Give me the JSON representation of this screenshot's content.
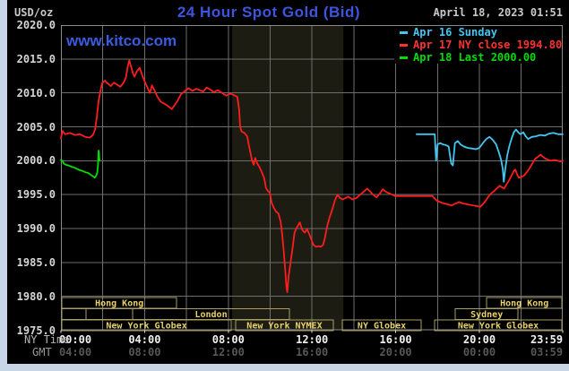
{
  "header": {
    "unit_label": "USD/oz",
    "title": "24 Hour Spot Gold (Bid)",
    "datetime": "April 18, 2023 01:51",
    "watermark": "www.kitco.com"
  },
  "legend": {
    "items": [
      {
        "label": "Apr 16 Sunday",
        "color": "#41c6f1"
      },
      {
        "label": "Apr 17 NY close 1994.80",
        "color": "#ff3232"
      },
      {
        "label": "Apr 18 Last 2000.00",
        "color": "#00dd00"
      }
    ]
  },
  "axes": {
    "x_ny_label": "NY Time",
    "x_gmt_label": "GMT",
    "y_ticks": [
      2020.0,
      2015.0,
      2010.0,
      2005.0,
      2000.0,
      1995.0,
      1990.0,
      1985.0,
      1980.0,
      1975.0
    ],
    "x_major": [
      {
        "minutes": 0,
        "ny": "00:00",
        "gmt": "04:00"
      },
      {
        "minutes": 240,
        "ny": "04:00",
        "gmt": "08:00"
      },
      {
        "minutes": 480,
        "ny": "08:00",
        "gmt": "12:00"
      },
      {
        "minutes": 720,
        "ny": "12:00",
        "gmt": "16:00"
      },
      {
        "minutes": 960,
        "ny": "16:00",
        "gmt": "20:00"
      },
      {
        "minutes": 1200,
        "ny": "20:00",
        "gmt": "00:00"
      },
      {
        "minutes": 1439,
        "ny": "23:59",
        "gmt": "03:59"
      }
    ]
  },
  "palette": {
    "background": "#000000",
    "frame": "#c7d5e7",
    "grid": "#6e6e6e",
    "plot_border": "#8a8a8a",
    "nymex_band": "#1c1c13",
    "session_border": "#a89e63",
    "session_text": "#e9d26b",
    "title_blue": "#3d55de",
    "red": "#ff1d1d",
    "green": "#00dd00",
    "cyan": "#41c6f1"
  },
  "chart_data": {
    "type": "line",
    "title": "24 Hour Spot Gold (Bid)",
    "ylabel": "USD/oz",
    "ylim": [
      1975,
      2020
    ],
    "y_gridline_step": 5,
    "x_minutes_range": [
      0,
      1439
    ],
    "x_gridline_step_minutes": 120,
    "grid": true,
    "legend_position": "top-right",
    "nymex_band_minutes": [
      491,
      810
    ],
    "series": [
      {
        "name": "Apr 17 NY close 1994.80",
        "color": "#ff1d1d",
        "close": 1994.8,
        "points": [
          [
            0,
            2003.3
          ],
          [
            4,
            2004.4
          ],
          [
            12,
            2003.9
          ],
          [
            25,
            2004.1
          ],
          [
            40,
            2003.8
          ],
          [
            55,
            2003.9
          ],
          [
            70,
            2003.5
          ],
          [
            82,
            2003.4
          ],
          [
            92,
            2003.8
          ],
          [
            98,
            2004.6
          ],
          [
            103,
            2006.5
          ],
          [
            108,
            2008.8
          ],
          [
            113,
            2010.2
          ],
          [
            118,
            2011.4
          ],
          [
            126,
            2011.8
          ],
          [
            134,
            2011.4
          ],
          [
            143,
            2011.0
          ],
          [
            152,
            2011.5
          ],
          [
            162,
            2011.2
          ],
          [
            170,
            2010.9
          ],
          [
            178,
            2011.4
          ],
          [
            186,
            2012.2
          ],
          [
            192,
            2014.0
          ],
          [
            196,
            2014.8
          ],
          [
            201,
            2013.9
          ],
          [
            207,
            2012.8
          ],
          [
            211,
            2012.4
          ],
          [
            218,
            2013.2
          ],
          [
            226,
            2013.7
          ],
          [
            233,
            2012.6
          ],
          [
            240,
            2011.7
          ],
          [
            248,
            2010.8
          ],
          [
            255,
            2010.0
          ],
          [
            261,
            2011.1
          ],
          [
            268,
            2010.4
          ],
          [
            276,
            2009.5
          ],
          [
            286,
            2008.7
          ],
          [
            297,
            2008.4
          ],
          [
            308,
            2008.0
          ],
          [
            318,
            2007.6
          ],
          [
            326,
            2008.2
          ],
          [
            334,
            2008.8
          ],
          [
            344,
            2009.8
          ],
          [
            356,
            2010.3
          ],
          [
            366,
            2010.7
          ],
          [
            377,
            2010.3
          ],
          [
            388,
            2010.6
          ],
          [
            398,
            2010.4
          ],
          [
            408,
            2010.2
          ],
          [
            418,
            2010.8
          ],
          [
            428,
            2010.5
          ],
          [
            438,
            2010.1
          ],
          [
            450,
            2010.4
          ],
          [
            462,
            2010.0
          ],
          [
            474,
            2009.6
          ],
          [
            486,
            2009.9
          ],
          [
            499,
            2009.6
          ],
          [
            506,
            2009.4
          ],
          [
            511,
            2007.5
          ],
          [
            514,
            2005.0
          ],
          [
            518,
            2004.3
          ],
          [
            526,
            2004.1
          ],
          [
            534,
            2003.6
          ],
          [
            541,
            2001.8
          ],
          [
            548,
            2000.0
          ],
          [
            553,
            1999.4
          ],
          [
            557,
            2000.4
          ],
          [
            563,
            1999.6
          ],
          [
            570,
            1999.0
          ],
          [
            577,
            1998.2
          ],
          [
            583,
            1997.4
          ],
          [
            588,
            1996.0
          ],
          [
            594,
            1995.5
          ],
          [
            599,
            1995.3
          ],
          [
            604,
            1993.8
          ],
          [
            611,
            1993.0
          ],
          [
            617,
            1992.5
          ],
          [
            624,
            1992.2
          ],
          [
            630,
            1991.0
          ],
          [
            634,
            1989.4
          ],
          [
            639,
            1986.6
          ],
          [
            643,
            1984.0
          ],
          [
            647,
            1981.2
          ],
          [
            649,
            1980.6
          ],
          [
            653,
            1983.0
          ],
          [
            659,
            1985.2
          ],
          [
            664,
            1987.0
          ],
          [
            670,
            1989.4
          ],
          [
            677,
            1990.2
          ],
          [
            685,
            1990.9
          ],
          [
            692,
            1989.8
          ],
          [
            699,
            1989.4
          ],
          [
            706,
            1989.9
          ],
          [
            712,
            1989.2
          ],
          [
            718,
            1988.4
          ],
          [
            724,
            1987.6
          ],
          [
            731,
            1987.3
          ],
          [
            738,
            1987.4
          ],
          [
            745,
            1987.3
          ],
          [
            752,
            1987.6
          ],
          [
            757,
            1988.6
          ],
          [
            763,
            1990.2
          ],
          [
            770,
            1991.6
          ],
          [
            778,
            1992.8
          ],
          [
            786,
            1994.2
          ],
          [
            793,
            1995.0
          ],
          [
            800,
            1994.5
          ],
          [
            808,
            1994.3
          ],
          [
            816,
            1994.5
          ],
          [
            824,
            1994.7
          ],
          [
            836,
            1994.3
          ],
          [
            848,
            1994.5
          ],
          [
            858,
            1995.0
          ],
          [
            868,
            1995.4
          ],
          [
            878,
            1995.9
          ],
          [
            886,
            1995.5
          ],
          [
            895,
            1995.0
          ],
          [
            905,
            1994.6
          ],
          [
            915,
            1995.2
          ],
          [
            923,
            1995.8
          ],
          [
            932,
            1995.4
          ],
          [
            941,
            1995.2
          ],
          [
            950,
            1995.0
          ],
          [
            958,
            1994.8
          ],
          [
            968,
            1994.8
          ],
          [
            1065,
            1994.8
          ],
          [
            1078,
            1994.1
          ],
          [
            1092,
            1993.8
          ],
          [
            1106,
            1993.6
          ],
          [
            1120,
            1993.4
          ],
          [
            1132,
            1993.7
          ],
          [
            1142,
            1993.9
          ],
          [
            1152,
            1993.7
          ],
          [
            1162,
            1993.6
          ],
          [
            1172,
            1993.5
          ],
          [
            1182,
            1993.4
          ],
          [
            1192,
            1993.3
          ],
          [
            1202,
            1993.2
          ],
          [
            1210,
            1993.6
          ],
          [
            1218,
            1994.1
          ],
          [
            1226,
            1994.7
          ],
          [
            1234,
            1995.2
          ],
          [
            1242,
            1995.5
          ],
          [
            1250,
            1995.9
          ],
          [
            1258,
            1996.3
          ],
          [
            1264,
            1996.1
          ],
          [
            1271,
            1995.9
          ],
          [
            1278,
            1996.5
          ],
          [
            1285,
            1997.1
          ],
          [
            1292,
            1997.8
          ],
          [
            1299,
            1998.5
          ],
          [
            1303,
            1998.7
          ],
          [
            1308,
            1998.0
          ],
          [
            1313,
            1997.5
          ],
          [
            1320,
            1997.6
          ],
          [
            1328,
            1997.8
          ],
          [
            1336,
            1998.3
          ],
          [
            1344,
            1998.9
          ],
          [
            1352,
            1999.6
          ],
          [
            1360,
            2000.3
          ],
          [
            1368,
            2000.6
          ],
          [
            1375,
            2000.9
          ],
          [
            1382,
            2000.6
          ],
          [
            1390,
            2000.3
          ],
          [
            1398,
            2000.1
          ],
          [
            1406,
            2000.0
          ],
          [
            1414,
            2000.1
          ],
          [
            1424,
            2000.0
          ],
          [
            1432,
            1999.9
          ],
          [
            1439,
            2000.0
          ]
        ]
      },
      {
        "name": "Apr 16 Sunday",
        "color": "#41c6f1",
        "points": [
          [
            1020,
            2003.9
          ],
          [
            1072,
            2003.9
          ],
          [
            1076,
            2000.0
          ],
          [
            1080,
            2002.4
          ],
          [
            1088,
            2002.6
          ],
          [
            1096,
            2002.4
          ],
          [
            1104,
            2002.3
          ],
          [
            1112,
            2002.1
          ],
          [
            1119,
            1999.6
          ],
          [
            1124,
            1999.3
          ],
          [
            1130,
            2002.6
          ],
          [
            1138,
            2002.9
          ],
          [
            1146,
            2002.4
          ],
          [
            1155,
            2002.1
          ],
          [
            1166,
            2001.9
          ],
          [
            1178,
            2001.8
          ],
          [
            1190,
            2001.7
          ],
          [
            1200,
            2001.9
          ],
          [
            1210,
            2002.6
          ],
          [
            1220,
            2003.2
          ],
          [
            1229,
            2003.5
          ],
          [
            1238,
            2003.1
          ],
          [
            1248,
            2002.4
          ],
          [
            1256,
            2001.2
          ],
          [
            1262,
            2000.2
          ],
          [
            1267,
            1998.8
          ],
          [
            1270,
            1996.9
          ],
          [
            1274,
            1998.7
          ],
          [
            1280,
            2000.8
          ],
          [
            1286,
            2002.2
          ],
          [
            1292,
            2003.2
          ],
          [
            1299,
            2004.2
          ],
          [
            1305,
            2004.6
          ],
          [
            1311,
            2004.2
          ],
          [
            1318,
            2003.9
          ],
          [
            1326,
            2004.2
          ],
          [
            1333,
            2003.6
          ],
          [
            1340,
            2003.2
          ],
          [
            1350,
            2003.5
          ],
          [
            1362,
            2003.6
          ],
          [
            1374,
            2003.8
          ],
          [
            1388,
            2003.7
          ],
          [
            1400,
            2004.0
          ],
          [
            1412,
            2004.1
          ],
          [
            1426,
            2003.9
          ],
          [
            1439,
            2003.9
          ]
        ]
      },
      {
        "name": "Apr 18 Last 2000.00",
        "color": "#00dd00",
        "last": 2000.0,
        "points": [
          [
            0,
            2000.1
          ],
          [
            4,
            2000.0
          ],
          [
            8,
            1999.6
          ],
          [
            14,
            1999.4
          ],
          [
            22,
            1999.3
          ],
          [
            30,
            1999.1
          ],
          [
            38,
            1999.0
          ],
          [
            46,
            1998.8
          ],
          [
            54,
            1998.6
          ],
          [
            62,
            1998.5
          ],
          [
            70,
            1998.3
          ],
          [
            78,
            1998.2
          ],
          [
            86,
            1997.9
          ],
          [
            92,
            1997.7
          ],
          [
            97,
            1997.5
          ],
          [
            101,
            1997.8
          ],
          [
            104,
            1998.2
          ],
          [
            106,
            1999.2
          ],
          [
            108,
            2001.5
          ],
          [
            109,
            2001.2
          ],
          [
            110,
            2000.4
          ],
          [
            111,
            2000.0
          ]
        ]
      }
    ],
    "sessions": [
      {
        "row": 0,
        "start_min": 3,
        "end_min": 332,
        "label": "Hong Kong"
      },
      {
        "row": 0,
        "start_min": 1221,
        "end_min": 1437,
        "label": "Hong Kong"
      },
      {
        "row": 1,
        "start_min": 3,
        "end_min": 72,
        "label": ""
      },
      {
        "row": 1,
        "start_min": 72,
        "end_min": 206,
        "label": ""
      },
      {
        "row": 1,
        "start_min": 206,
        "end_min": 655,
        "label": "London"
      },
      {
        "row": 1,
        "start_min": 1131,
        "end_min": 1311,
        "label": "Sydney"
      },
      {
        "row": 2,
        "start_min": 3,
        "end_min": 488,
        "label": "New York Globex"
      },
      {
        "row": 2,
        "start_min": 501,
        "end_min": 781,
        "label": "New York NYMEX"
      },
      {
        "row": 2,
        "start_min": 807,
        "end_min": 1033,
        "label": "NY Globex"
      },
      {
        "row": 2,
        "start_min": 1071,
        "end_min": 1437,
        "label": "New York Globex"
      }
    ]
  }
}
